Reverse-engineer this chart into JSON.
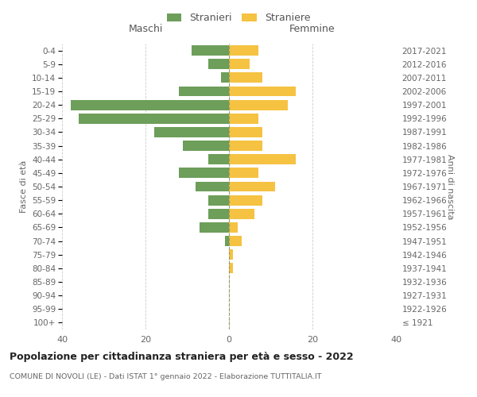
{
  "age_groups": [
    "100+",
    "95-99",
    "90-94",
    "85-89",
    "80-84",
    "75-79",
    "70-74",
    "65-69",
    "60-64",
    "55-59",
    "50-54",
    "45-49",
    "40-44",
    "35-39",
    "30-34",
    "25-29",
    "20-24",
    "15-19",
    "10-14",
    "5-9",
    "0-4"
  ],
  "birth_years": [
    "≤ 1921",
    "1922-1926",
    "1927-1931",
    "1932-1936",
    "1937-1941",
    "1942-1946",
    "1947-1951",
    "1952-1956",
    "1957-1961",
    "1962-1966",
    "1967-1971",
    "1972-1976",
    "1977-1981",
    "1982-1986",
    "1987-1991",
    "1992-1996",
    "1997-2001",
    "2002-2006",
    "2007-2011",
    "2012-2016",
    "2017-2021"
  ],
  "males": [
    0,
    0,
    0,
    0,
    0,
    0,
    1,
    7,
    5,
    5,
    8,
    12,
    5,
    11,
    18,
    36,
    38,
    12,
    2,
    5,
    9
  ],
  "females": [
    0,
    0,
    0,
    0,
    1,
    1,
    3,
    2,
    6,
    8,
    11,
    7,
    16,
    8,
    8,
    7,
    14,
    16,
    8,
    5,
    7
  ],
  "color_male": "#6d9e5a",
  "color_female": "#f5c242",
  "title": "Popolazione per cittadinanza straniera per età e sesso - 2022",
  "subtitle": "COMUNE DI NOVOLI (LE) - Dati ISTAT 1° gennaio 2022 - Elaborazione TUTTITALIA.IT",
  "legend_male": "Stranieri",
  "legend_female": "Straniere",
  "xlabel_left": "Maschi",
  "xlabel_right": "Femmine",
  "ylabel_left": "Fasce di età",
  "ylabel_right": "Anni di nascita",
  "xlim": 40,
  "background_color": "#ffffff",
  "grid_color": "#cccccc"
}
